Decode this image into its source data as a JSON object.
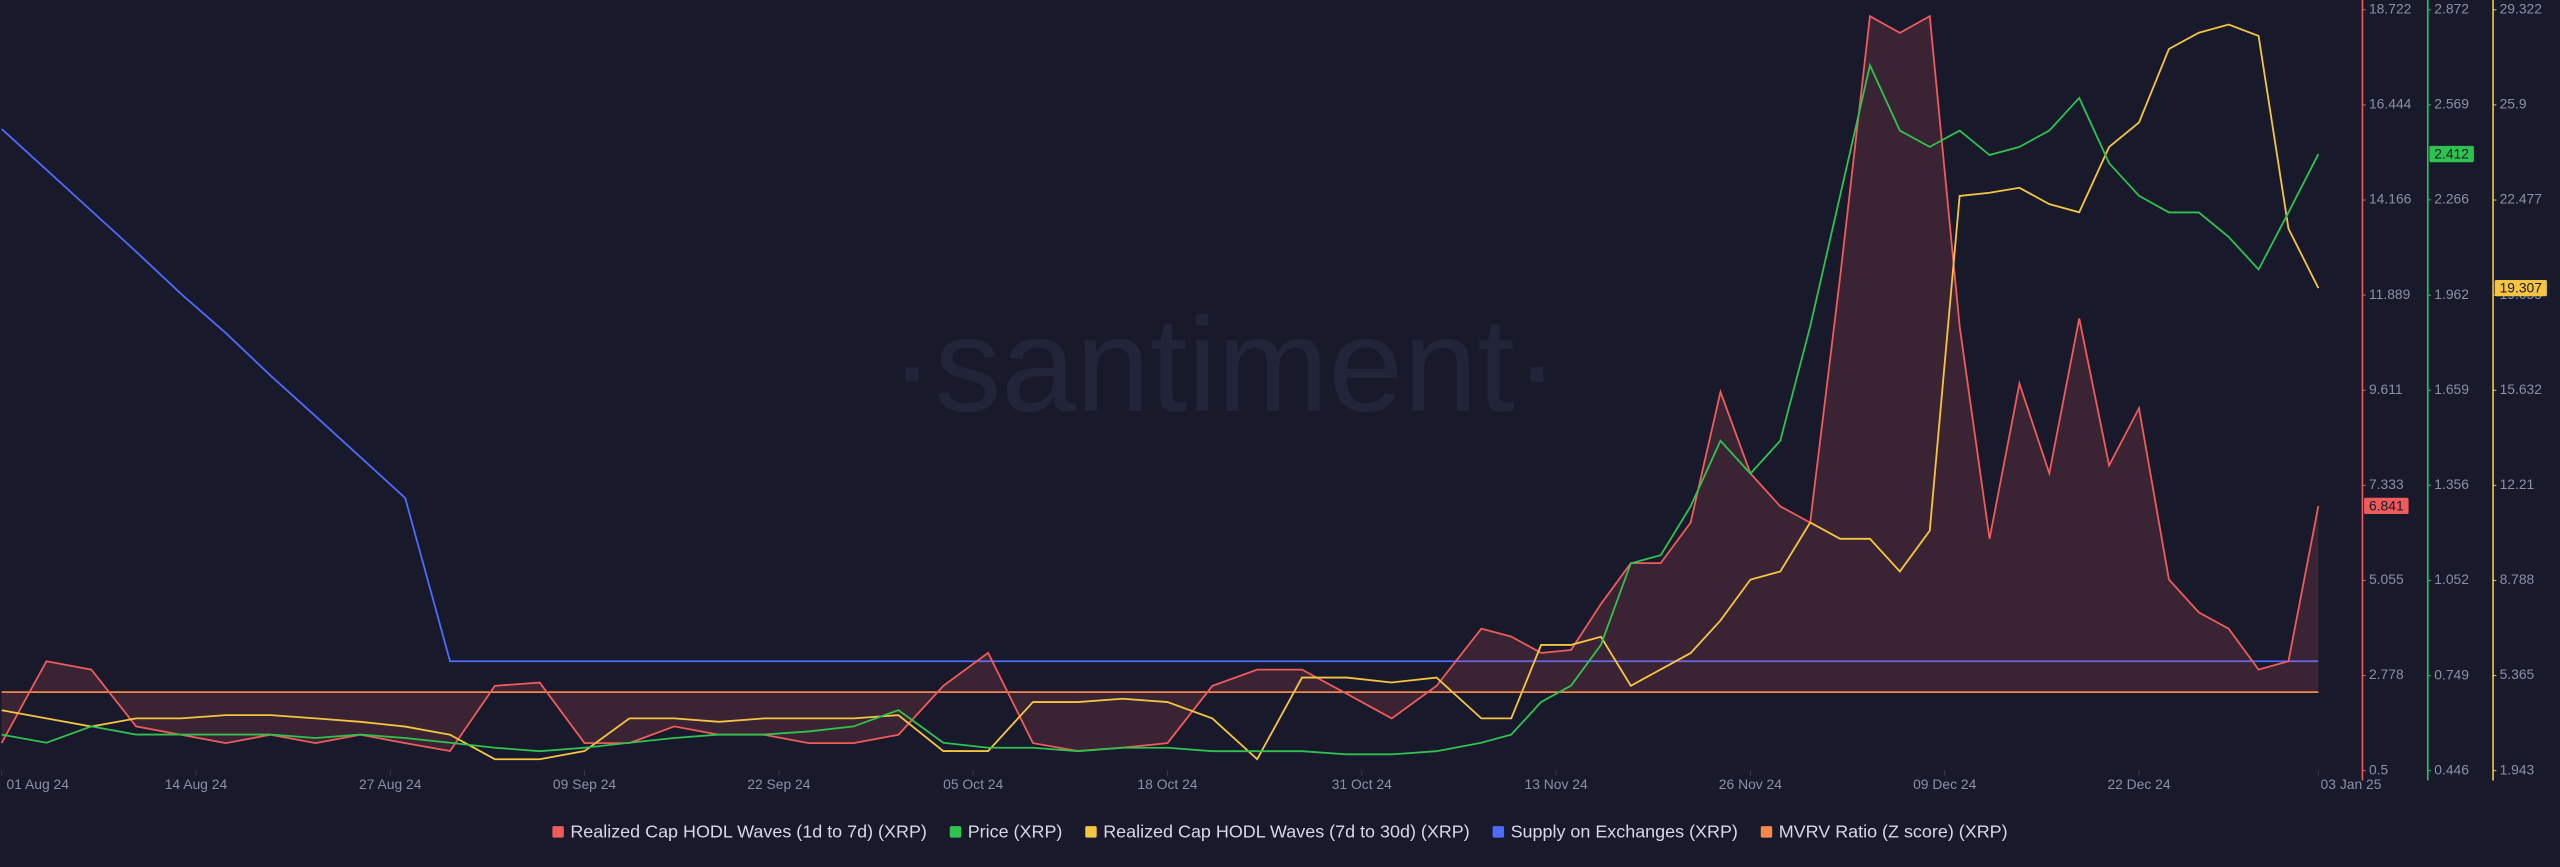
{
  "chart_data": {
    "type": "line",
    "watermark": "·santiment·",
    "x": [
      "2024-08-01",
      "2024-08-04",
      "2024-08-07",
      "2024-08-10",
      "2024-08-13",
      "2024-08-16",
      "2024-08-19",
      "2024-08-22",
      "2024-08-25",
      "2024-08-28",
      "2024-08-31",
      "2024-09-03",
      "2024-09-06",
      "2024-09-09",
      "2024-09-12",
      "2024-09-15",
      "2024-09-18",
      "2024-09-21",
      "2024-09-24",
      "2024-09-27",
      "2024-09-30",
      "2024-10-03",
      "2024-10-06",
      "2024-10-09",
      "2024-10-12",
      "2024-10-15",
      "2024-10-18",
      "2024-10-21",
      "2024-10-24",
      "2024-10-27",
      "2024-10-30",
      "2024-11-02",
      "2024-11-05",
      "2024-11-08",
      "2024-11-10",
      "2024-11-12",
      "2024-11-14",
      "2024-11-16",
      "2024-11-18",
      "2024-11-20",
      "2024-11-22",
      "2024-11-24",
      "2024-11-26",
      "2024-11-28",
      "2024-11-30",
      "2024-12-02",
      "2024-12-04",
      "2024-12-06",
      "2024-12-08",
      "2024-12-10",
      "2024-12-12",
      "2024-12-14",
      "2024-12-16",
      "2024-12-18",
      "2024-12-20",
      "2024-12-22",
      "2024-12-24",
      "2024-12-26",
      "2024-12-28",
      "2024-12-30",
      "2025-01-01",
      "2025-01-03"
    ],
    "xlim": [
      "2024-08-01",
      "2025-01-03"
    ],
    "xticks": [
      {
        "value": "2024-08-01",
        "label": "01 Aug 24"
      },
      {
        "value": "2024-08-14",
        "label": "14 Aug 24"
      },
      {
        "value": "2024-08-27",
        "label": "27 Aug 24"
      },
      {
        "value": "2024-09-09",
        "label": "09 Sep 24"
      },
      {
        "value": "2024-09-22",
        "label": "22 Sep 24"
      },
      {
        "value": "2024-10-05",
        "label": "05 Oct 24"
      },
      {
        "value": "2024-10-18",
        "label": "18 Oct 24"
      },
      {
        "value": "2024-10-31",
        "label": "31 Oct 24"
      },
      {
        "value": "2024-11-13",
        "label": "13 Nov 24"
      },
      {
        "value": "2024-11-26",
        "label": "26 Nov 24"
      },
      {
        "value": "2024-12-09",
        "label": "09 Dec 24"
      },
      {
        "value": "2024-12-22",
        "label": "22 Dec 24"
      },
      {
        "value": "2025-01-03",
        "label": "03 Jan 25"
      }
    ],
    "ylim": [
      0.5,
      18.722
    ],
    "yticks": [
      0.5,
      2.778,
      5.055,
      7.333,
      9.611,
      11.889,
      14.166,
      16.444,
      18.722
    ],
    "y2lim": [
      0.446,
      2.872
    ],
    "y2ticks": [
      0.446,
      0.749,
      1.052,
      1.356,
      1.659,
      1.962,
      2.266,
      2.569,
      2.872
    ],
    "y3lim": [
      1.943,
      29.322
    ],
    "y3ticks": [
      1.943,
      5.365,
      8.788,
      12.21,
      15.632,
      19.055,
      22.477,
      25.9,
      29.322
    ],
    "series": [
      {
        "name": "Realized Cap HODL Waves (1d to 7d) (XRP)",
        "color": "#ef5b5b",
        "axis": "y",
        "area": true,
        "values": [
          1.16,
          3.12,
          2.92,
          1.56,
          1.36,
          1.16,
          1.36,
          1.16,
          1.36,
          1.16,
          0.97,
          2.53,
          2.61,
          1.16,
          1.16,
          1.56,
          1.36,
          1.36,
          1.16,
          1.16,
          1.36,
          2.53,
          3.32,
          1.16,
          0.97,
          1.05,
          1.16,
          2.53,
          2.92,
          2.92,
          2.34,
          1.75,
          2.53,
          3.9,
          3.71,
          3.32,
          3.39,
          4.49,
          5.47,
          5.47,
          6.44,
          9.57,
          7.62,
          6.83,
          6.44,
          12.31,
          18.57,
          18.17,
          18.57,
          11.14,
          6.05,
          9.77,
          7.62,
          11.33,
          7.81,
          9.18,
          5.08,
          4.29,
          3.9,
          2.92,
          3.12,
          6.841
        ]
      },
      {
        "name": "Price (XRP)",
        "color": "#2fc24f",
        "axis": "y2",
        "values": [
          0.561,
          0.535,
          0.587,
          0.561,
          0.561,
          0.561,
          0.561,
          0.55,
          0.561,
          0.55,
          0.535,
          0.519,
          0.508,
          0.519,
          0.535,
          0.55,
          0.561,
          0.561,
          0.571,
          0.587,
          0.639,
          0.535,
          0.519,
          0.519,
          0.508,
          0.519,
          0.519,
          0.508,
          0.508,
          0.508,
          0.498,
          0.498,
          0.508,
          0.535,
          0.561,
          0.665,
          0.717,
          0.847,
          1.107,
          1.133,
          1.289,
          1.498,
          1.393,
          1.498,
          1.862,
          2.279,
          2.695,
          2.487,
          2.435,
          2.487,
          2.409,
          2.435,
          2.487,
          2.591,
          2.383,
          2.279,
          2.226,
          2.226,
          2.148,
          2.044,
          2.226,
          2.412
        ]
      },
      {
        "name": "Realized Cap HODL Waves (7d to 30d) (XRP)",
        "color": "#f5c542",
        "axis": "y3",
        "values": [
          4.117,
          3.823,
          3.529,
          3.823,
          3.823,
          3.94,
          3.94,
          3.823,
          3.7,
          3.529,
          3.236,
          2.354,
          2.354,
          2.648,
          3.823,
          3.823,
          3.7,
          3.823,
          3.823,
          3.823,
          3.94,
          2.648,
          2.648,
          4.411,
          4.411,
          4.53,
          4.411,
          3.823,
          2.354,
          5.292,
          5.292,
          5.116,
          5.292,
          3.823,
          3.823,
          6.467,
          6.467,
          6.761,
          4.998,
          5.586,
          6.173,
          7.348,
          8.817,
          9.111,
          10.873,
          10.286,
          10.286,
          9.111,
          10.579,
          22.624,
          22.74,
          22.918,
          22.33,
          22.037,
          24.387,
          25.268,
          27.912,
          28.499,
          28.793,
          28.382,
          21.449,
          19.307
        ]
      },
      {
        "name": "Supply on Exchanges (XRP)",
        "color": "#4d6bfe",
        "axis": "y",
        "values": [
          15.87,
          14.89,
          13.91,
          12.93,
          11.92,
          10.98,
          9.96,
          8.99,
          8.01,
          7.03,
          3.12,
          3.12,
          3.12,
          3.12,
          3.12,
          3.12,
          3.12,
          3.12,
          3.12,
          3.12,
          3.12,
          3.12,
          3.12,
          3.12,
          3.12,
          3.12,
          3.12,
          3.12,
          3.12,
          3.12,
          3.12,
          3.12,
          3.12,
          3.12,
          3.12,
          3.12,
          3.12,
          3.12,
          3.12,
          3.12,
          3.12,
          3.12,
          3.12,
          3.12,
          3.12,
          3.12,
          3.12,
          3.12,
          3.12,
          3.12,
          3.12,
          3.12,
          3.12,
          3.12,
          3.12,
          3.12,
          3.12,
          3.12,
          3.12,
          3.12,
          3.12,
          3.12
        ]
      },
      {
        "name": "MVRV Ratio (Z score) (XRP)",
        "color": "#f4894b",
        "axis": "y",
        "values": [
          2.38,
          2.38,
          2.38,
          2.38,
          2.38,
          2.38,
          2.38,
          2.38,
          2.38,
          2.38,
          2.38,
          2.38,
          2.38,
          2.38,
          2.38,
          2.38,
          2.38,
          2.38,
          2.38,
          2.38,
          2.38,
          2.38,
          2.38,
          2.38,
          2.38,
          2.38,
          2.38,
          2.38,
          2.38,
          2.38,
          2.38,
          2.38,
          2.38,
          2.38,
          2.38,
          2.38,
          2.38,
          2.38,
          2.38,
          2.38,
          2.38,
          2.38,
          2.38,
          2.38,
          2.38,
          2.38,
          2.38,
          2.38,
          2.38,
          2.38,
          2.38,
          2.38,
          2.38,
          2.38,
          2.38,
          2.38,
          2.38,
          2.38,
          2.38,
          2.38,
          2.38,
          2.38
        ]
      }
    ]
  }
}
